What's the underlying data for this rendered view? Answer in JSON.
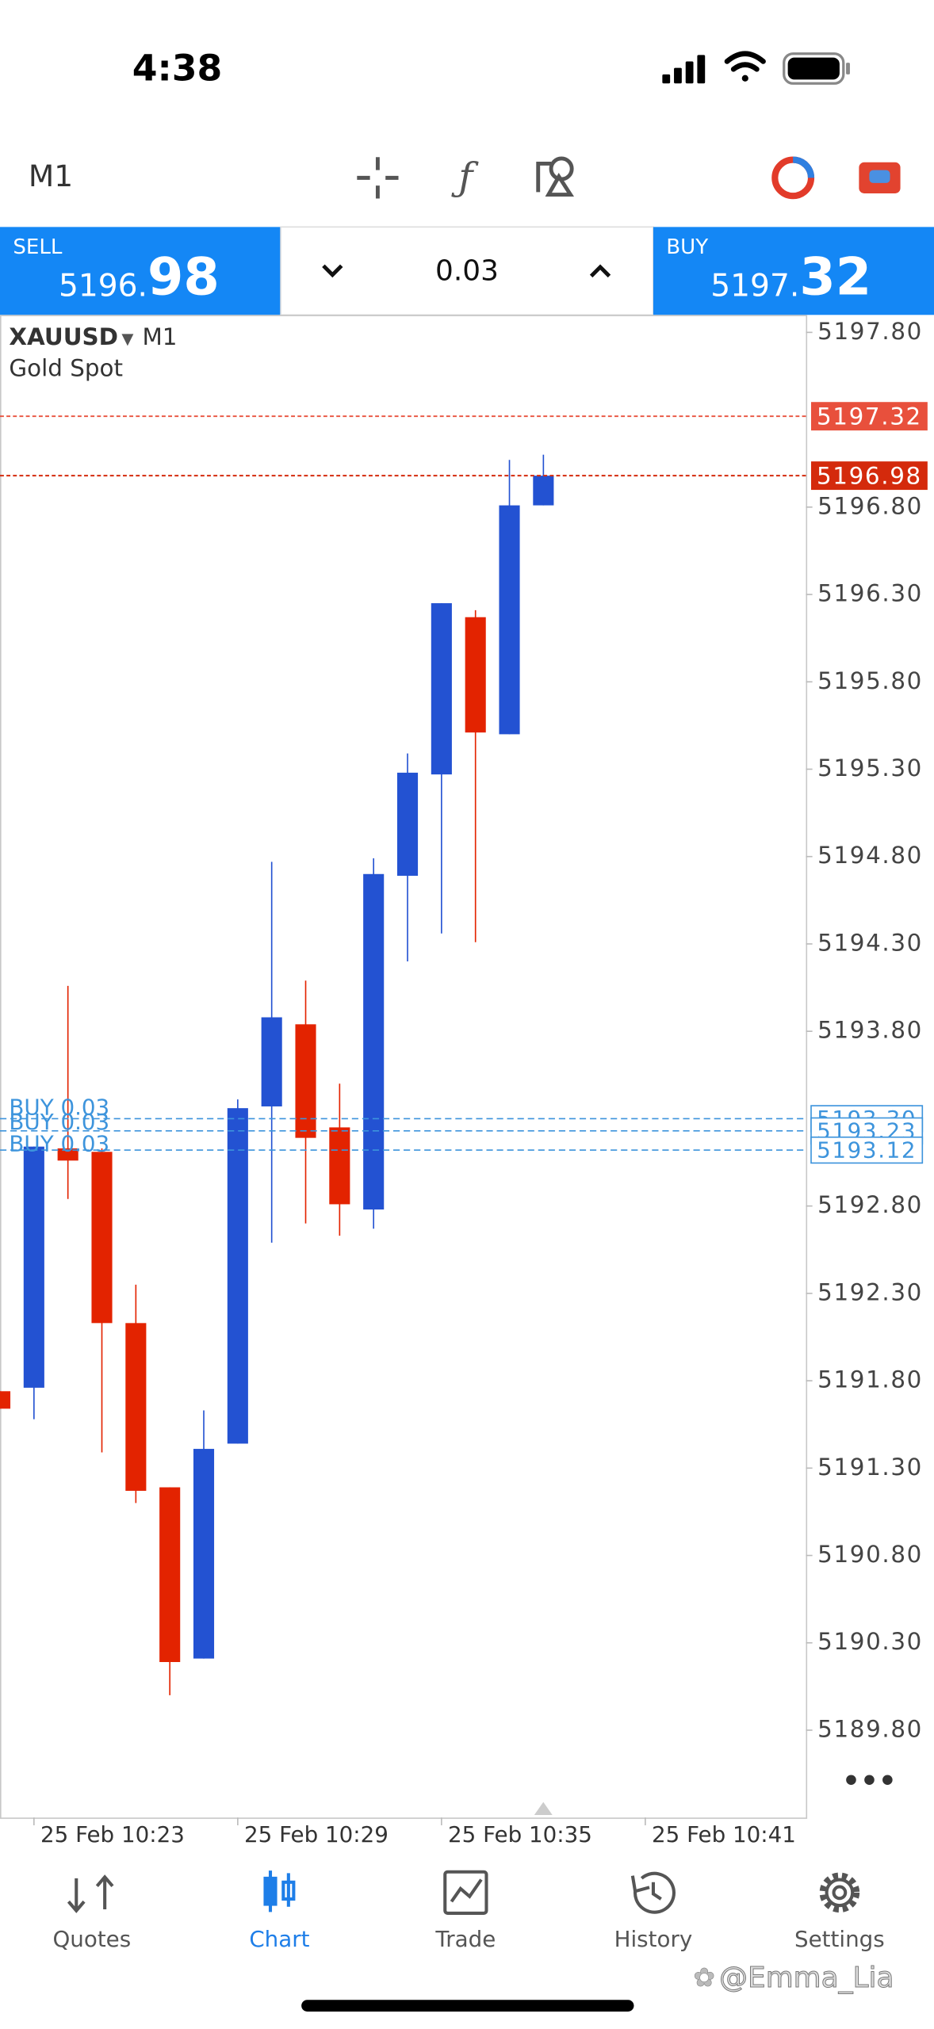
{
  "status_bar": {
    "time": "4:38"
  },
  "toolbar": {
    "timeframe": "M1"
  },
  "trade_panel": {
    "sell": {
      "label": "SELL",
      "price_small": "5196.",
      "price_big": "98"
    },
    "volume": "0.03",
    "buy": {
      "label": "BUY",
      "price_small": "5197.",
      "price_big": "32"
    }
  },
  "chart_data": {
    "type": "candlestick",
    "symbol": "XAUUSD",
    "timeframe": "M1",
    "description": "Gold Spot",
    "up_color": "#2352d2",
    "down_color": "#e32300",
    "open": [
      5191.74,
      5191.76,
      5193.13,
      5193.11,
      5192.13,
      5191.19,
      5190.21,
      5191.44,
      5193.37,
      5193.84,
      5193.25,
      5192.78,
      5194.69,
      5195.27,
      5196.17,
      5195.5,
      5196.81
    ],
    "high": [
      5191.74,
      5193.14,
      5194.06,
      5193.13,
      5192.35,
      5191.19,
      5191.63,
      5193.41,
      5194.77,
      5194.09,
      5193.5,
      5194.79,
      5195.39,
      5196.25,
      5196.21,
      5197.07,
      5197.1
    ],
    "low": [
      5191.64,
      5191.58,
      5192.84,
      5191.39,
      5191.1,
      5190.0,
      5190.21,
      5191.44,
      5192.59,
      5192.7,
      5192.63,
      5192.67,
      5194.2,
      5194.36,
      5194.31,
      5195.5,
      5196.81
    ],
    "close": [
      5191.64,
      5193.14,
      5193.06,
      5192.13,
      5191.17,
      5190.19,
      5191.41,
      5193.36,
      5193.88,
      5193.19,
      5192.81,
      5194.7,
      5195.28,
      5196.25,
      5195.51,
      5196.81,
      5196.98
    ],
    "ylim": [
      5189.3,
      5197.9
    ],
    "yticks": [
      {
        "value": 5197.8,
        "label": "5197.80"
      },
      {
        "value": 5196.8,
        "label": "5196.80"
      },
      {
        "value": 5196.3,
        "label": "5196.30"
      },
      {
        "value": 5195.8,
        "label": "5195.80"
      },
      {
        "value": 5195.3,
        "label": "5195.30"
      },
      {
        "value": 5194.8,
        "label": "5194.80"
      },
      {
        "value": 5194.3,
        "label": "5194.30"
      },
      {
        "value": 5193.8,
        "label": "5193.80"
      },
      {
        "value": 5192.8,
        "label": "5192.80"
      },
      {
        "value": 5192.3,
        "label": "5192.30"
      },
      {
        "value": 5191.8,
        "label": "5191.80"
      },
      {
        "value": 5191.3,
        "label": "5191.30"
      },
      {
        "value": 5190.8,
        "label": "5190.80"
      },
      {
        "value": 5190.3,
        "label": "5190.30"
      },
      {
        "value": 5189.8,
        "label": "5189.80"
      }
    ],
    "xlim": [
      0,
      23.73
    ],
    "xticks": [
      {
        "value": 1,
        "label": "25 Feb 10:23"
      },
      {
        "value": 7,
        "label": "25 Feb 10:29"
      },
      {
        "value": 13,
        "label": "25 Feb 10:35"
      },
      {
        "value": 19,
        "label": "25 Feb 10:41"
      }
    ],
    "ask": 5197.32,
    "bid": 5196.98,
    "ask_color": "#e8503c",
    "bid_color": "#d42a0c",
    "order_color": "#3d94dc",
    "orders": [
      {
        "label": "BUY 0.03",
        "price": 5193.3,
        "price_label": "5193.30"
      },
      {
        "label": "BUY 0.03",
        "price": 5193.23
      },
      {
        "label": "BUY 0.03",
        "price": 5193.12
      }
    ]
  },
  "tabs": [
    {
      "label": "Quotes"
    },
    {
      "label": "Chart",
      "active": true
    },
    {
      "label": "Trade"
    },
    {
      "label": "History"
    },
    {
      "label": "Settings"
    }
  ],
  "watermark": "@Emma_Lia"
}
